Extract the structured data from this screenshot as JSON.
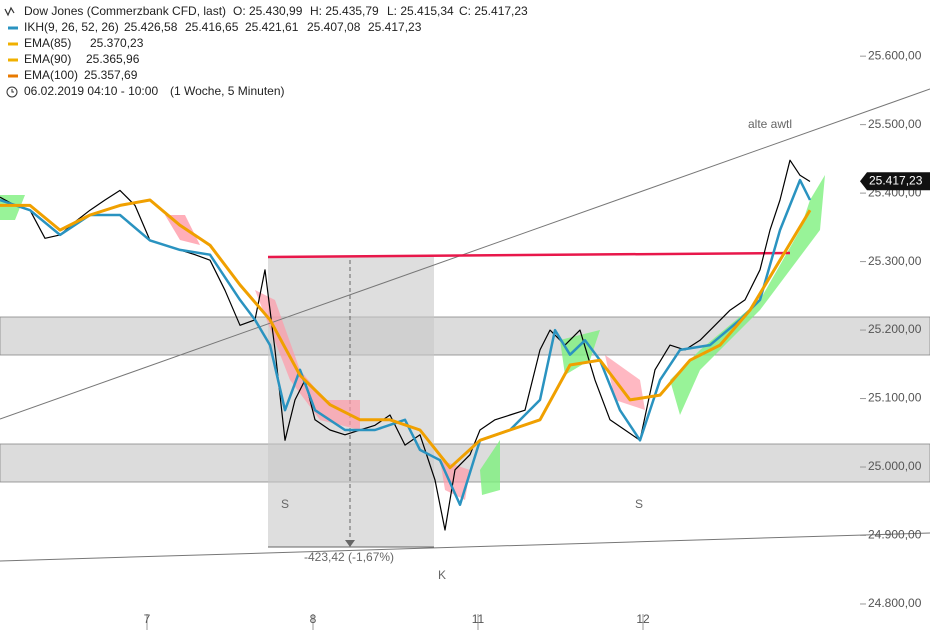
{
  "chart_data": {
    "type": "line",
    "title": "Dow Jones (Commerzbank CFD, last)",
    "ohlc": [
      "O: 25.430,99",
      "H: 25.435,79",
      "L: 25.415,34",
      "C: 25.417,23"
    ],
    "legend": [
      {
        "name": "IKH(9, 26, 52, 26)",
        "color": "#2a93c0",
        "values": [
          "25.426,58",
          "25.416,65",
          "25.421,61",
          "25.407,08",
          "25.417,23"
        ],
        "value_colors": [
          "#2a93c0",
          "#5a6c8c",
          "#8c3f8c",
          "#5c8c3c",
          "#e8a600"
        ]
      },
      {
        "name": "EMA(85)",
        "color": "#f0b000",
        "values": [
          "25.370,23"
        ],
        "value_colors": [
          "#e8a600"
        ]
      },
      {
        "name": "EMA(90)",
        "color": "#f0b000",
        "values": [
          "25.365,96"
        ],
        "value_colors": [
          "#e8a600"
        ]
      },
      {
        "name": "EMA(100)",
        "color": "#e87a00",
        "values": [
          "25.357,69"
        ],
        "value_colors": [
          "#e87a00"
        ]
      }
    ],
    "period": "06.02.2019 04:10 - 10:00",
    "interval": "(1 Woche, 5 Minuten)",
    "series": [
      {
        "color": "#000000",
        "width": 1.2,
        "x": [
          0,
          3,
          6,
          9,
          12,
          15,
          18,
          21,
          24,
          27,
          30,
          33,
          36,
          39,
          42,
          45,
          48,
          51,
          53,
          55,
          57,
          59,
          61,
          63,
          66,
          69,
          72,
          75,
          78,
          81,
          84,
          87,
          89,
          91,
          94,
          96,
          99,
          102,
          105,
          108,
          110,
          113,
          116,
          119,
          122,
          125,
          128,
          131,
          134,
          137,
          140,
          143,
          146,
          149,
          152,
          154,
          156,
          158,
          160,
          162
        ],
        "values": [
          25394,
          25382,
          25375,
          25334,
          25339,
          25358,
          25375,
          25390,
          25404,
          25382,
          25331,
          25324,
          25317,
          25310,
          25302,
          25258,
          25207,
          25215,
          25288,
          25171,
          25039,
          25098,
          25127,
          25069,
          25054,
          25047,
          25054,
          25061,
          25076,
          25032,
          25047,
          24981,
          24908,
          24996,
          25018,
          25054,
          25069,
          25076,
          25083,
          25171,
          25200,
          25178,
          25200,
          25127,
          25069,
          25054,
          25039,
          25142,
          25178,
          25171,
          25185,
          25207,
          25229,
          25244,
          25288,
          25346,
          25390,
          25448,
          25426,
          25417
        ]
      },
      {
        "color": "#2a93c0",
        "width": 2.5,
        "x": [
          0,
          6,
          12,
          18,
          24,
          30,
          36,
          42,
          48,
          51,
          54,
          57,
          60,
          63,
          69,
          75,
          81,
          84,
          88,
          92,
          96,
          102,
          108,
          111,
          114,
          117,
          120,
          124,
          128,
          132,
          136,
          142,
          148,
          152,
          156,
          160,
          162
        ],
        "values": [
          25390,
          25375,
          25339,
          25368,
          25368,
          25331,
          25317,
          25310,
          25244,
          25215,
          25178,
          25083,
          25142,
          25083,
          25054,
          25054,
          25069,
          25025,
          25010,
          24945,
          25039,
          25054,
          25098,
          25200,
          25164,
          25185,
          25156,
          25083,
          25039,
          25127,
          25171,
          25178,
          25215,
          25244,
          25346,
          25419,
          25390
        ]
      },
      {
        "color": "#f0a000",
        "width": 3,
        "x": [
          0,
          6,
          12,
          18,
          24,
          30,
          36,
          42,
          48,
          54,
          60,
          66,
          72,
          78,
          84,
          90,
          96,
          102,
          108,
          114,
          120,
          126,
          132,
          138,
          144,
          150,
          156,
          162
        ],
        "values": [
          25382,
          25382,
          25346,
          25368,
          25382,
          25390,
          25353,
          25324,
          25266,
          25215,
          25134,
          25091,
          25069,
          25069,
          25054,
          24999,
          25039,
          25054,
          25069,
          25149,
          25156,
          25098,
          25105,
          25156,
          25178,
          25229,
          25302,
          25375
        ]
      }
    ],
    "xlim": [
      0,
      186
    ],
    "xticks": [
      {
        "value": 29.4,
        "label": "7"
      },
      {
        "value": 62.6,
        "label": "8"
      },
      {
        "value": 95.6,
        "label": "11"
      },
      {
        "value": 128.6,
        "label": "12"
      }
    ],
    "ylim": [
      24762,
      25682
    ],
    "yticks": [
      {
        "value": 24800,
        "label": "24.800,00"
      },
      {
        "value": 24900,
        "label": "24.900,00"
      },
      {
        "value": 25000,
        "label": "25.000,00"
      },
      {
        "value": 25100,
        "label": "25.100,00"
      },
      {
        "value": 25200,
        "label": "25.200,00"
      },
      {
        "value": 25300,
        "label": "25.300,00"
      },
      {
        "value": 25400,
        "label": "25.400,00"
      },
      {
        "value": 25500,
        "label": "25.500,00"
      },
      {
        "value": 25600,
        "label": "25.600,00"
      }
    ],
    "last_price": {
      "value": 25417.23,
      "label": "25.417,23"
    },
    "annotations": [
      "alte awtl",
      "S",
      "S",
      "K",
      "-423,42 (-1,67%)"
    ]
  }
}
